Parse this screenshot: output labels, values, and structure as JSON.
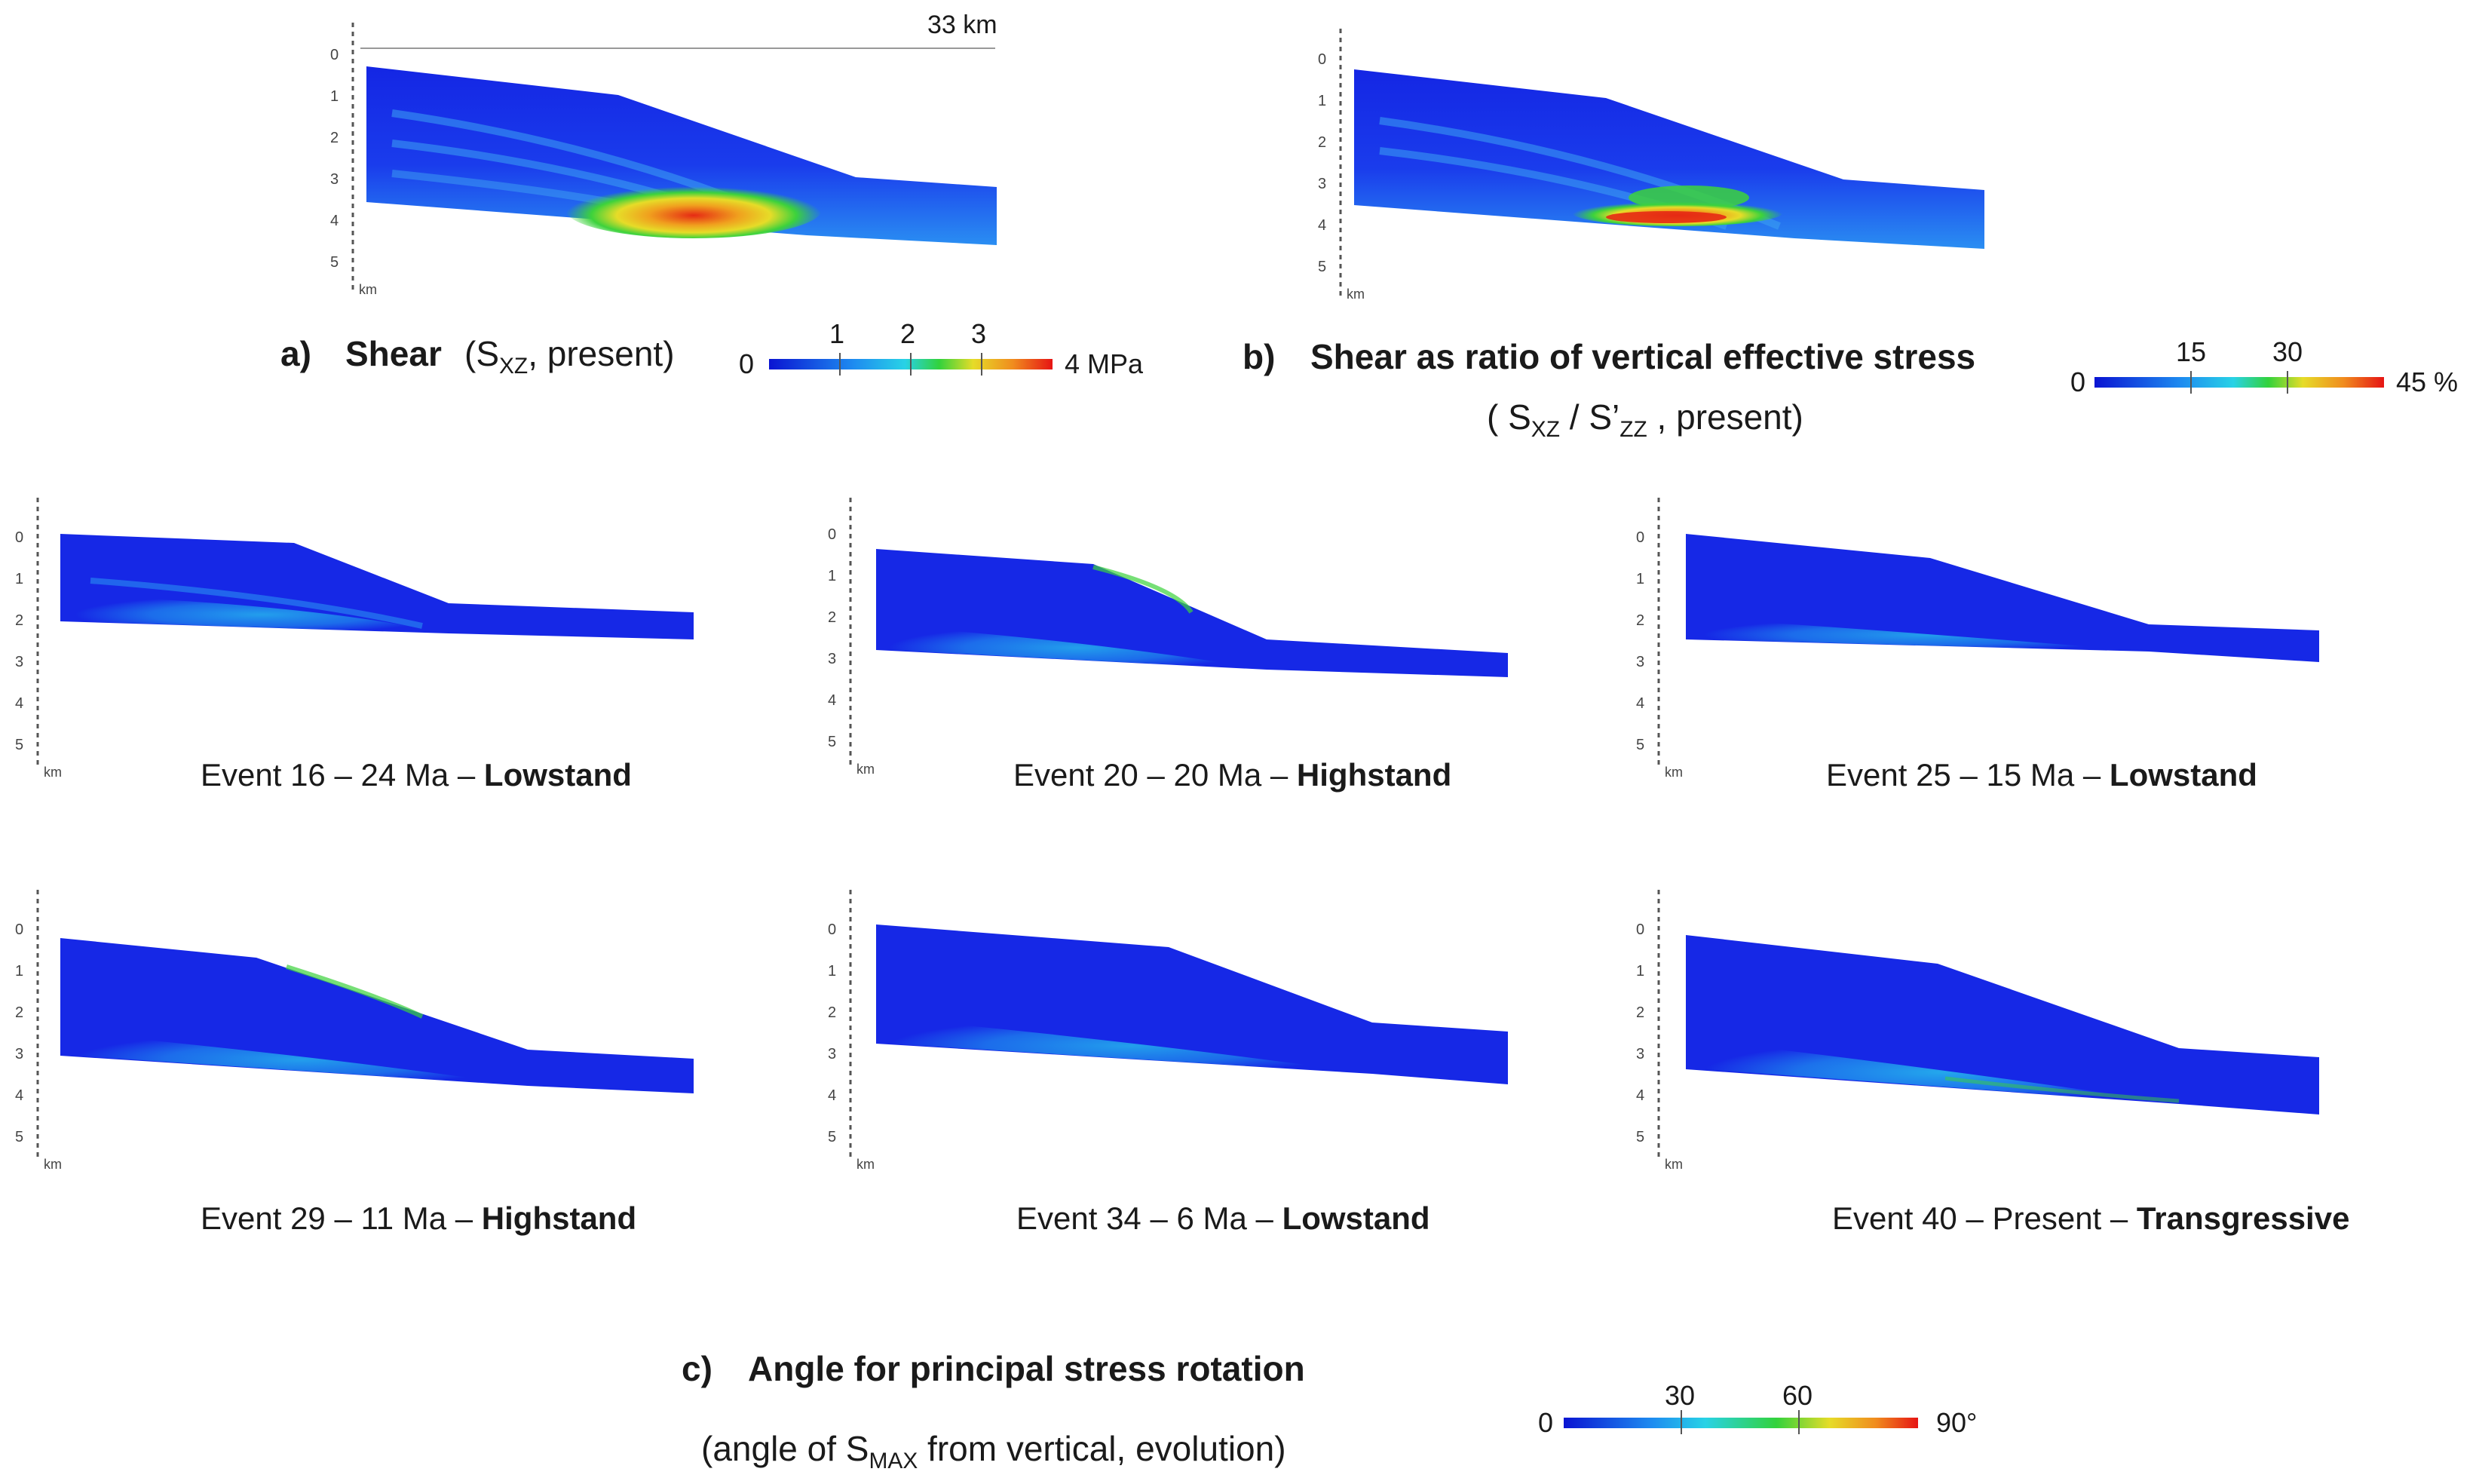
{
  "scale_label": "33 km",
  "depth_ticks": [
    "0",
    "1",
    "2",
    "3",
    "4",
    "5"
  ],
  "depth_unit": "km",
  "panel_a": {
    "letter": "a)",
    "title": "Shear",
    "sub_open": "(S",
    "sub_subscript": "XZ",
    "sub_close": ", present)",
    "colorbar": {
      "min": "0",
      "ticks": [
        "1",
        "2",
        "3"
      ],
      "max": "4 MPa"
    }
  },
  "panel_b": {
    "letter": "b)",
    "title": "Shear as ratio of vertical effective stress",
    "sub_open": "( S",
    "sub_s1": "XZ",
    "sub_mid": " / S’",
    "sub_s2": "ZZ",
    "sub_close": " ,  present)",
    "colorbar": {
      "min": "0",
      "ticks": [
        "15",
        "30"
      ],
      "max": "45 %"
    }
  },
  "panel_c": {
    "letter": "c)",
    "title": "Angle for principal stress rotation",
    "sub_open": "(angle of S",
    "sub_subscript": "MAX",
    "sub_close": " from vertical,  evolution)",
    "colorbar": {
      "min": "0",
      "ticks": [
        "30",
        "60"
      ],
      "max": "90°"
    }
  },
  "events": [
    {
      "prefix": "Event 16 – 24 Ma – ",
      "stage": "Lowstand"
    },
    {
      "prefix": "Event 20 – 20 Ma – ",
      "stage": "Highstand"
    },
    {
      "prefix": "Event 25 – 15 Ma – ",
      "stage": "Lowstand"
    },
    {
      "prefix": "Event 29 – 11 Ma – ",
      "stage": "Highstand"
    },
    {
      "prefix": "Event 34 – 6 Ma – ",
      "stage": "Lowstand"
    },
    {
      "prefix": "Event 40 – Present – ",
      "stage": "Transgressive"
    }
  ],
  "colors": {
    "base_blue": "#1428e6",
    "cyan": "#22c8f0",
    "green": "#3cd23c",
    "yellow": "#f0dc28",
    "orange": "#f08c1e",
    "red": "#e61e1e"
  }
}
